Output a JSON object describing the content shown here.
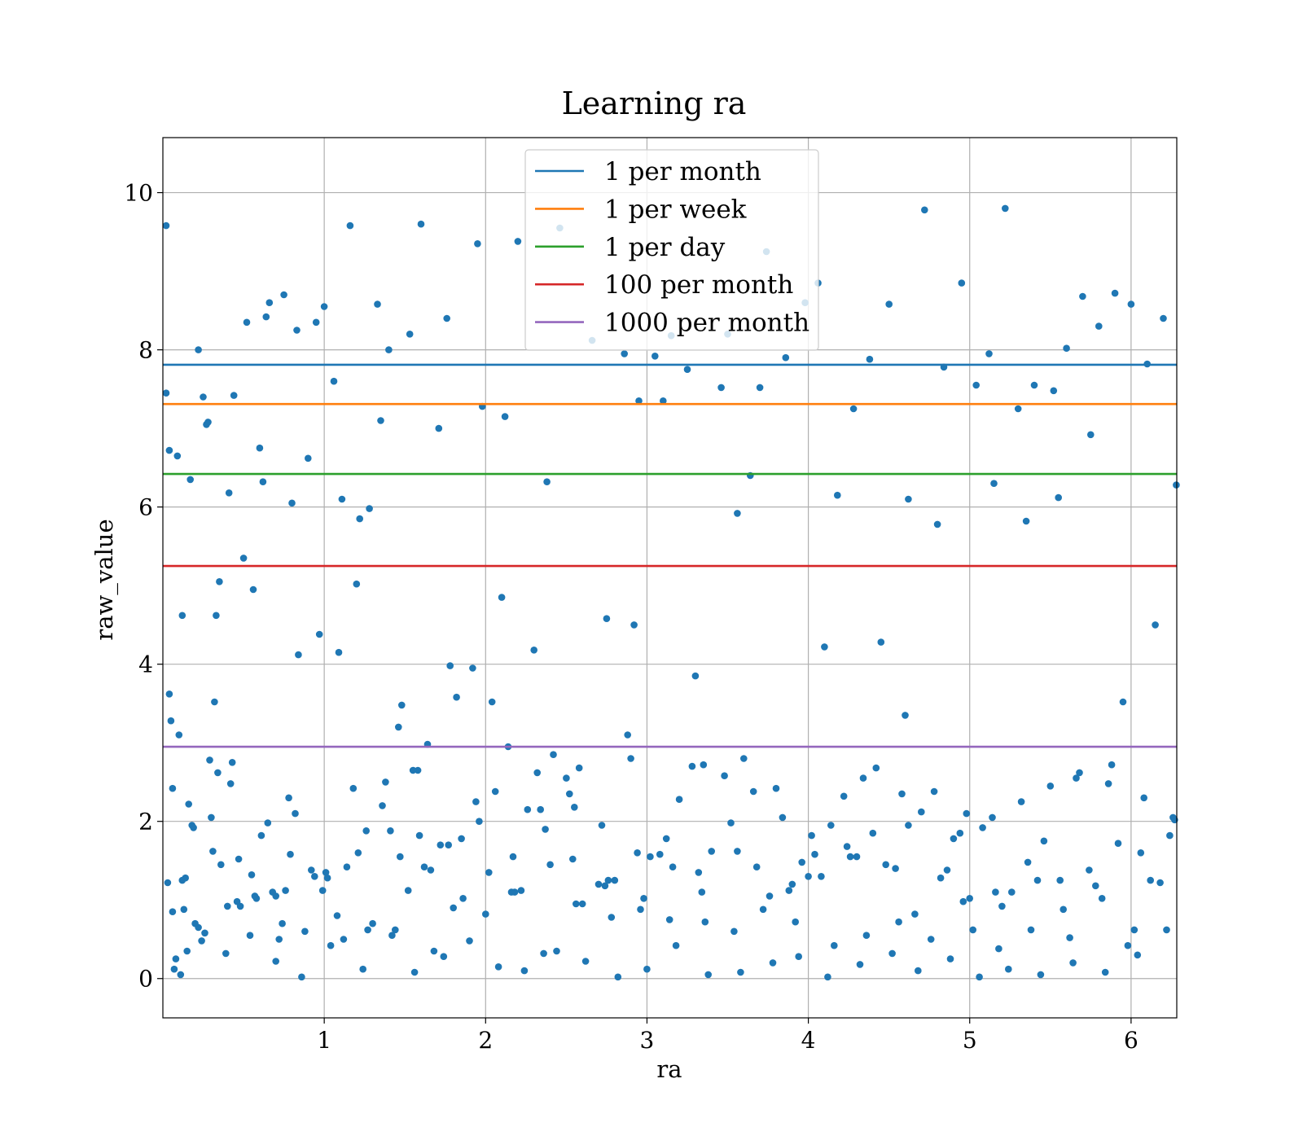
{
  "chart_data": {
    "type": "scatter",
    "title": "Learning ra",
    "xlabel": "ra",
    "ylabel": "raw_value",
    "xlim": [
      0.0,
      6.2832
    ],
    "ylim": [
      -0.5,
      10.7
    ],
    "xticks": [
      1,
      2,
      3,
      4,
      5,
      6
    ],
    "yticks": [
      0,
      2,
      4,
      6,
      8,
      10
    ],
    "grid": true,
    "legend_position": "top-center",
    "point_color": "#1f77b4",
    "series": [
      {
        "name": "raw_value",
        "x": [
          0.02,
          0.02,
          0.04,
          0.04,
          0.06,
          0.06,
          0.09,
          0.12,
          0.12,
          0.17,
          0.22,
          0.22,
          0.27,
          0.3,
          0.32,
          0.35,
          0.41,
          0.44,
          0.52,
          0.56,
          0.6,
          0.64,
          0.66,
          0.7,
          0.75,
          0.8,
          0.83,
          0.9,
          0.95,
          1.0,
          1.06,
          1.11,
          1.16,
          1.2,
          1.28,
          1.33,
          1.4,
          1.48,
          1.53,
          1.6,
          1.68,
          1.76,
          1.85,
          1.95,
          2.04,
          2.12,
          2.2,
          2.3,
          2.38,
          2.46,
          2.54,
          2.66,
          2.75,
          2.86,
          2.95,
          3.05,
          3.15,
          3.25,
          3.35,
          3.46,
          3.56,
          3.64,
          3.74,
          3.86,
          3.98,
          4.06,
          4.18,
          4.28,
          4.38,
          4.5,
          4.62,
          4.72,
          4.84,
          4.95,
          5.04,
          5.12,
          5.22,
          5.3,
          5.4,
          5.52,
          5.6,
          5.7,
          5.8,
          5.9,
          6.0,
          6.1,
          6.2,
          6.28,
          0.05,
          0.1,
          0.16,
          0.25,
          0.33,
          0.42,
          0.5,
          0.62,
          0.72,
          0.84,
          0.97,
          1.09,
          1.22,
          1.35,
          1.46,
          1.58,
          1.71,
          1.82,
          1.98,
          2.1,
          2.26,
          2.42,
          2.58,
          2.78,
          2.92,
          3.1,
          3.3,
          3.5,
          3.7,
          3.92,
          4.1,
          4.26,
          4.45,
          4.6,
          4.8,
          4.98,
          5.15,
          5.35,
          5.55,
          5.75,
          5.95,
          6.15,
          0.03,
          0.08,
          0.14,
          0.2,
          0.28,
          0.36,
          0.46,
          0.55,
          0.68,
          0.78,
          0.88,
          1.02,
          1.14,
          1.26,
          1.38,
          1.52,
          1.64,
          1.78,
          1.92,
          2.06,
          2.18,
          2.34,
          2.5,
          2.7,
          2.88,
          3.02,
          3.2,
          3.4,
          3.6,
          3.8,
          4.0,
          4.14,
          4.34,
          4.54,
          4.7,
          4.9,
          5.08,
          5.26,
          5.46,
          5.66,
          5.86,
          6.06,
          6.24,
          0.07,
          0.18,
          0.31,
          0.48,
          0.58,
          0.76,
          0.92,
          1.12,
          1.3,
          1.44,
          1.62,
          1.8,
          2.0,
          2.16,
          2.36,
          2.56,
          2.74,
          2.96,
          3.14,
          3.34,
          3.54,
          3.76,
          3.96,
          4.16,
          4.36,
          4.56,
          4.76,
          4.96,
          5.18,
          5.38,
          5.58,
          5.78,
          5.98,
          6.18,
          0.11,
          0.24,
          0.39,
          0.54,
          0.7,
          0.86,
          1.04,
          1.24,
          1.42,
          1.56,
          1.74,
          1.9,
          2.08,
          2.24,
          2.44,
          2.62,
          2.82,
          3.0,
          3.18,
          3.38,
          3.58,
          3.78,
          3.94,
          4.12,
          4.32,
          4.52,
          4.68,
          4.88,
          5.06,
          5.24,
          5.44,
          5.64,
          5.84,
          6.04,
          6.22,
          0.13,
          0.26,
          0.4,
          0.57,
          0.74,
          0.94,
          1.08,
          1.27,
          1.47,
          1.66,
          1.86,
          2.02,
          2.22,
          2.4,
          2.6,
          2.8,
          2.98,
          3.16,
          3.36,
          3.56,
          3.72,
          3.9,
          4.08,
          4.3,
          4.48,
          4.66,
          4.86,
          5.02,
          5.2,
          5.42,
          5.62,
          5.82,
          6.02,
          6.26,
          0.15,
          0.29,
          0.43,
          0.61,
          0.79,
          0.99,
          1.18,
          1.36,
          1.55,
          1.72,
          1.94,
          2.14,
          2.32,
          2.52,
          2.72,
          2.9,
          3.08,
          3.28,
          3.48,
          3.66,
          3.84,
          4.02,
          4.22,
          4.42,
          4.58,
          4.78,
          4.94,
          5.14,
          5.32,
          5.5,
          5.68,
          5.88,
          6.08,
          6.27,
          0.19,
          0.34,
          0.47,
          0.65,
          0.82,
          1.01,
          1.21,
          1.41,
          1.59,
          1.77,
          1.96,
          2.17,
          2.37,
          2.55,
          2.76,
          2.94,
          3.12,
          3.32,
          3.52,
          3.68,
          3.88,
          4.04,
          4.24,
          4.4,
          4.62,
          4.82,
          5.0,
          5.16,
          5.36,
          5.56,
          5.74,
          5.92,
          6.12
        ],
        "y": [
          9.58,
          7.45,
          6.72,
          3.62,
          2.42,
          0.85,
          6.65,
          4.62,
          1.25,
          6.35,
          8.0,
          0.65,
          7.05,
          2.05,
          3.52,
          5.05,
          6.18,
          7.42,
          8.35,
          4.95,
          6.75,
          8.42,
          8.6,
          1.05,
          8.7,
          6.05,
          8.25,
          6.62,
          8.35,
          8.55,
          7.6,
          6.1,
          9.58,
          5.02,
          5.98,
          8.58,
          8.0,
          3.48,
          8.2,
          9.6,
          0.35,
          8.4,
          1.78,
          9.35,
          3.52,
          7.15,
          9.38,
          4.18,
          6.32,
          9.55,
          1.52,
          8.12,
          4.58,
          7.95,
          7.35,
          7.92,
          8.18,
          7.75,
          2.72,
          7.52,
          5.92,
          6.4,
          9.25,
          7.9,
          8.6,
          8.85,
          6.15,
          7.25,
          7.88,
          8.58,
          6.1,
          9.78,
          7.78,
          8.85,
          7.55,
          7.95,
          9.8,
          7.25,
          7.55,
          7.48,
          8.02,
          8.68,
          8.3,
          8.72,
          8.58,
          7.82,
          8.4,
          6.28,
          3.28,
          3.1,
          2.22,
          7.4,
          4.62,
          2.48,
          5.35,
          6.32,
          0.5,
          4.12,
          4.38,
          4.15,
          5.85,
          7.1,
          3.2,
          2.65,
          7.0,
          3.58,
          7.28,
          4.85,
          2.15,
          2.85,
          2.68,
          0.78,
          4.5,
          7.35,
          3.85,
          8.2,
          7.52,
          0.72,
          4.22,
          1.55,
          4.28,
          3.35,
          5.78,
          2.1,
          6.3,
          5.82,
          6.12,
          6.92,
          3.52,
          4.5,
          1.22,
          0.25,
          1.28,
          0.7,
          7.08,
          1.45,
          0.98,
          1.32,
          1.1,
          2.3,
          0.6,
          1.28,
          1.42,
          1.88,
          2.5,
          1.12,
          2.98,
          3.98,
          3.95,
          2.38,
          1.1,
          2.15,
          2.55,
          1.2,
          3.1,
          1.55,
          2.28,
          1.62,
          2.8,
          2.42,
          1.3,
          1.95,
          2.55,
          1.4,
          2.12,
          1.78,
          1.92,
          1.1,
          1.75,
          2.55,
          2.48,
          1.6,
          1.82,
          0.12,
          1.95,
          1.62,
          0.92,
          1.02,
          1.12,
          1.38,
          0.5,
          0.7,
          0.62,
          1.42,
          0.9,
          0.82,
          1.1,
          0.32,
          0.95,
          1.18,
          0.88,
          0.75,
          1.1,
          0.6,
          1.05,
          1.48,
          0.42,
          0.55,
          0.72,
          0.5,
          0.98,
          0.38,
          0.62,
          0.88,
          1.18,
          0.42,
          1.22,
          0.05,
          0.48,
          0.32,
          0.55,
          0.22,
          0.02,
          0.42,
          0.12,
          0.55,
          0.08,
          0.28,
          0.48,
          0.15,
          0.1,
          0.35,
          0.22,
          0.02,
          0.12,
          0.42,
          0.05,
          0.08,
          0.2,
          0.28,
          0.02,
          0.18,
          0.32,
          0.1,
          0.25,
          0.02,
          0.12,
          0.05,
          0.2,
          0.08,
          0.3,
          0.62,
          0.88,
          0.58,
          0.92,
          1.05,
          0.7,
          1.3,
          0.8,
          0.62,
          1.55,
          1.38,
          1.02,
          1.35,
          1.12,
          1.45,
          0.95,
          1.25,
          1.02,
          1.42,
          0.72,
          1.62,
          0.88,
          1.2,
          1.3,
          1.55,
          1.45,
          0.82,
          1.38,
          0.62,
          0.92,
          1.25,
          0.52,
          1.02,
          0.62,
          2.05,
          0.35,
          2.78,
          2.75,
          1.82,
          1.58,
          1.12,
          2.42,
          2.2,
          2.65,
          1.7,
          2.25,
          2.95,
          2.62,
          2.35,
          1.95,
          2.8,
          1.58,
          2.7,
          2.58,
          2.38,
          2.05,
          1.82,
          2.32,
          2.68,
          2.35,
          2.38,
          1.85,
          2.05,
          2.25,
          2.45,
          2.62,
          2.72,
          2.3,
          2.02,
          1.92,
          2.62,
          1.52,
          1.98,
          2.1,
          1.35,
          1.6,
          1.88,
          1.82,
          1.7,
          2.0,
          1.55,
          1.9,
          2.18,
          1.25,
          1.6,
          1.78,
          1.35,
          1.98,
          1.42,
          1.12,
          1.58,
          1.68,
          1.85,
          1.95,
          1.28,
          1.02,
          1.1,
          1.48,
          1.25,
          1.38,
          1.72,
          1.25
        ]
      }
    ],
    "hlines": [
      {
        "name": "1 per month",
        "y": 7.81,
        "color": "#1f77b4"
      },
      {
        "name": "1 per week",
        "y": 7.31,
        "color": "#ff7f0e"
      },
      {
        "name": "1 per day",
        "y": 6.42,
        "color": "#2ca02c"
      },
      {
        "name": "100 per month",
        "y": 5.25,
        "color": "#d62728"
      },
      {
        "name": "1000 per month",
        "y": 2.95,
        "color": "#9467bd"
      }
    ]
  }
}
